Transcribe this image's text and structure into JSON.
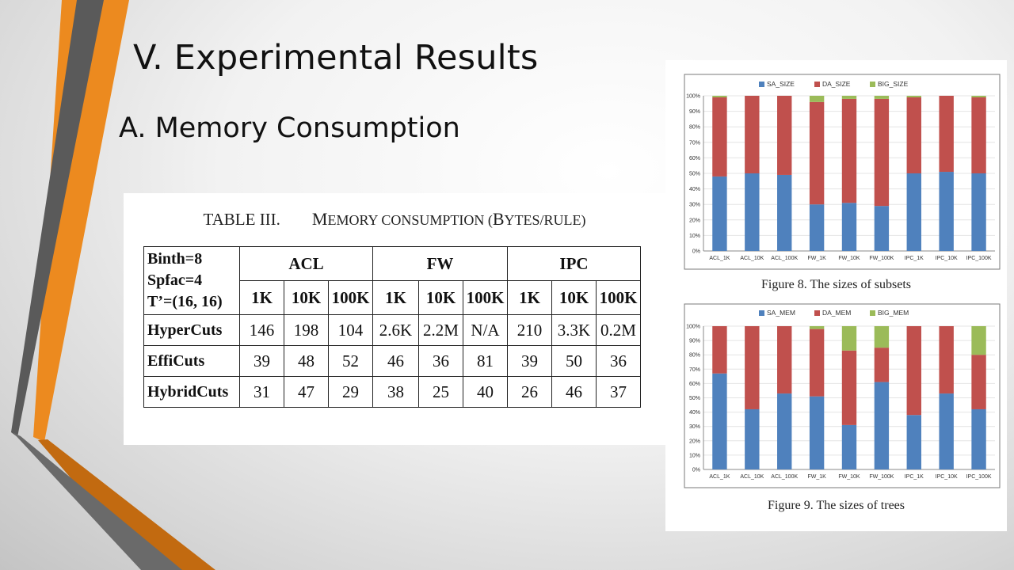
{
  "slide": {
    "title": "V. Experimental Results",
    "subtitle": "A. Memory Consumption"
  },
  "decor": {
    "colors": {
      "orange": "#ec8a1f",
      "gray": "#5a5a5a",
      "dark_orange": "#c26a10"
    }
  },
  "table": {
    "caption_label": "TABLE III.",
    "caption_big_1": "M",
    "caption_small_1": "emory consumption (",
    "caption_big_2": "B",
    "caption_small_2": "ytes/rule)",
    "header_lines": [
      "Binth=8",
      "Spfac=4",
      "T’=(16, 16)"
    ],
    "groups": [
      "ACL",
      "FW",
      "IPC"
    ],
    "sizes": [
      "1K",
      "10K",
      "100K",
      "1K",
      "10K",
      "100K",
      "1K",
      "10K",
      "100K"
    ],
    "rows": [
      {
        "name": "HyperCuts",
        "values": [
          "146",
          "198",
          "104",
          "2.6K",
          "2.2M",
          "N/A",
          "210",
          "3.3K",
          "0.2M"
        ]
      },
      {
        "name": "EffiCuts",
        "values": [
          "39",
          "48",
          "52",
          "46",
          "36",
          "81",
          "39",
          "50",
          "36"
        ]
      },
      {
        "name": "HybridCuts",
        "values": [
          "31",
          "47",
          "29",
          "38",
          "25",
          "40",
          "26",
          "46",
          "37"
        ]
      }
    ]
  },
  "chart_data": [
    {
      "type": "bar",
      "stacked": true,
      "percent": true,
      "title": "Figure 8. The sizes of subsets",
      "legend_position": "top",
      "categories": [
        "ACL_1K",
        "ACL_10K",
        "ACL_100K",
        "FW_1K",
        "FW_10K",
        "FW_100K",
        "IPC_1K",
        "IPC_10K",
        "IPC_100K"
      ],
      "ylim": [
        0,
        100
      ],
      "y_ticks": [
        "0%",
        "10%",
        "20%",
        "30%",
        "40%",
        "50%",
        "60%",
        "70%",
        "80%",
        "90%",
        "100%"
      ],
      "series": [
        {
          "name": "SA_SIZE",
          "color": "#4f81bd",
          "values": [
            48,
            50,
            49,
            30,
            31,
            29,
            50,
            51,
            50
          ]
        },
        {
          "name": "DA_SIZE",
          "color": "#c0504d",
          "values": [
            51,
            50,
            51,
            66,
            67,
            69,
            49,
            49,
            49
          ]
        },
        {
          "name": "BIG_SIZE",
          "color": "#9bbb59",
          "values": [
            1,
            0,
            0,
            4,
            2,
            2,
            1,
            0,
            1
          ]
        }
      ]
    },
    {
      "type": "bar",
      "stacked": true,
      "percent": true,
      "title": "Figure 9. The sizes of trees",
      "legend_position": "top",
      "categories": [
        "ACL_1K",
        "ACL_10K",
        "ACL_100K",
        "FW_1K",
        "FW_10K",
        "FW_100K",
        "IPC_1K",
        "IPC_10K",
        "IPC_100K"
      ],
      "ylim": [
        0,
        100
      ],
      "y_ticks": [
        "0%",
        "10%",
        "20%",
        "30%",
        "40%",
        "50%",
        "60%",
        "70%",
        "80%",
        "90%",
        "100%"
      ],
      "series": [
        {
          "name": "SA_MEM",
          "color": "#4f81bd",
          "values": [
            67,
            42,
            53,
            51,
            31,
            61,
            38,
            53,
            42
          ]
        },
        {
          "name": "DA_MEM",
          "color": "#c0504d",
          "values": [
            33,
            58,
            47,
            47,
            52,
            24,
            62,
            47,
            38
          ]
        },
        {
          "name": "BIG_MEM",
          "color": "#9bbb59",
          "values": [
            0,
            0,
            0,
            2,
            17,
            15,
            0,
            0,
            20
          ]
        }
      ]
    }
  ]
}
